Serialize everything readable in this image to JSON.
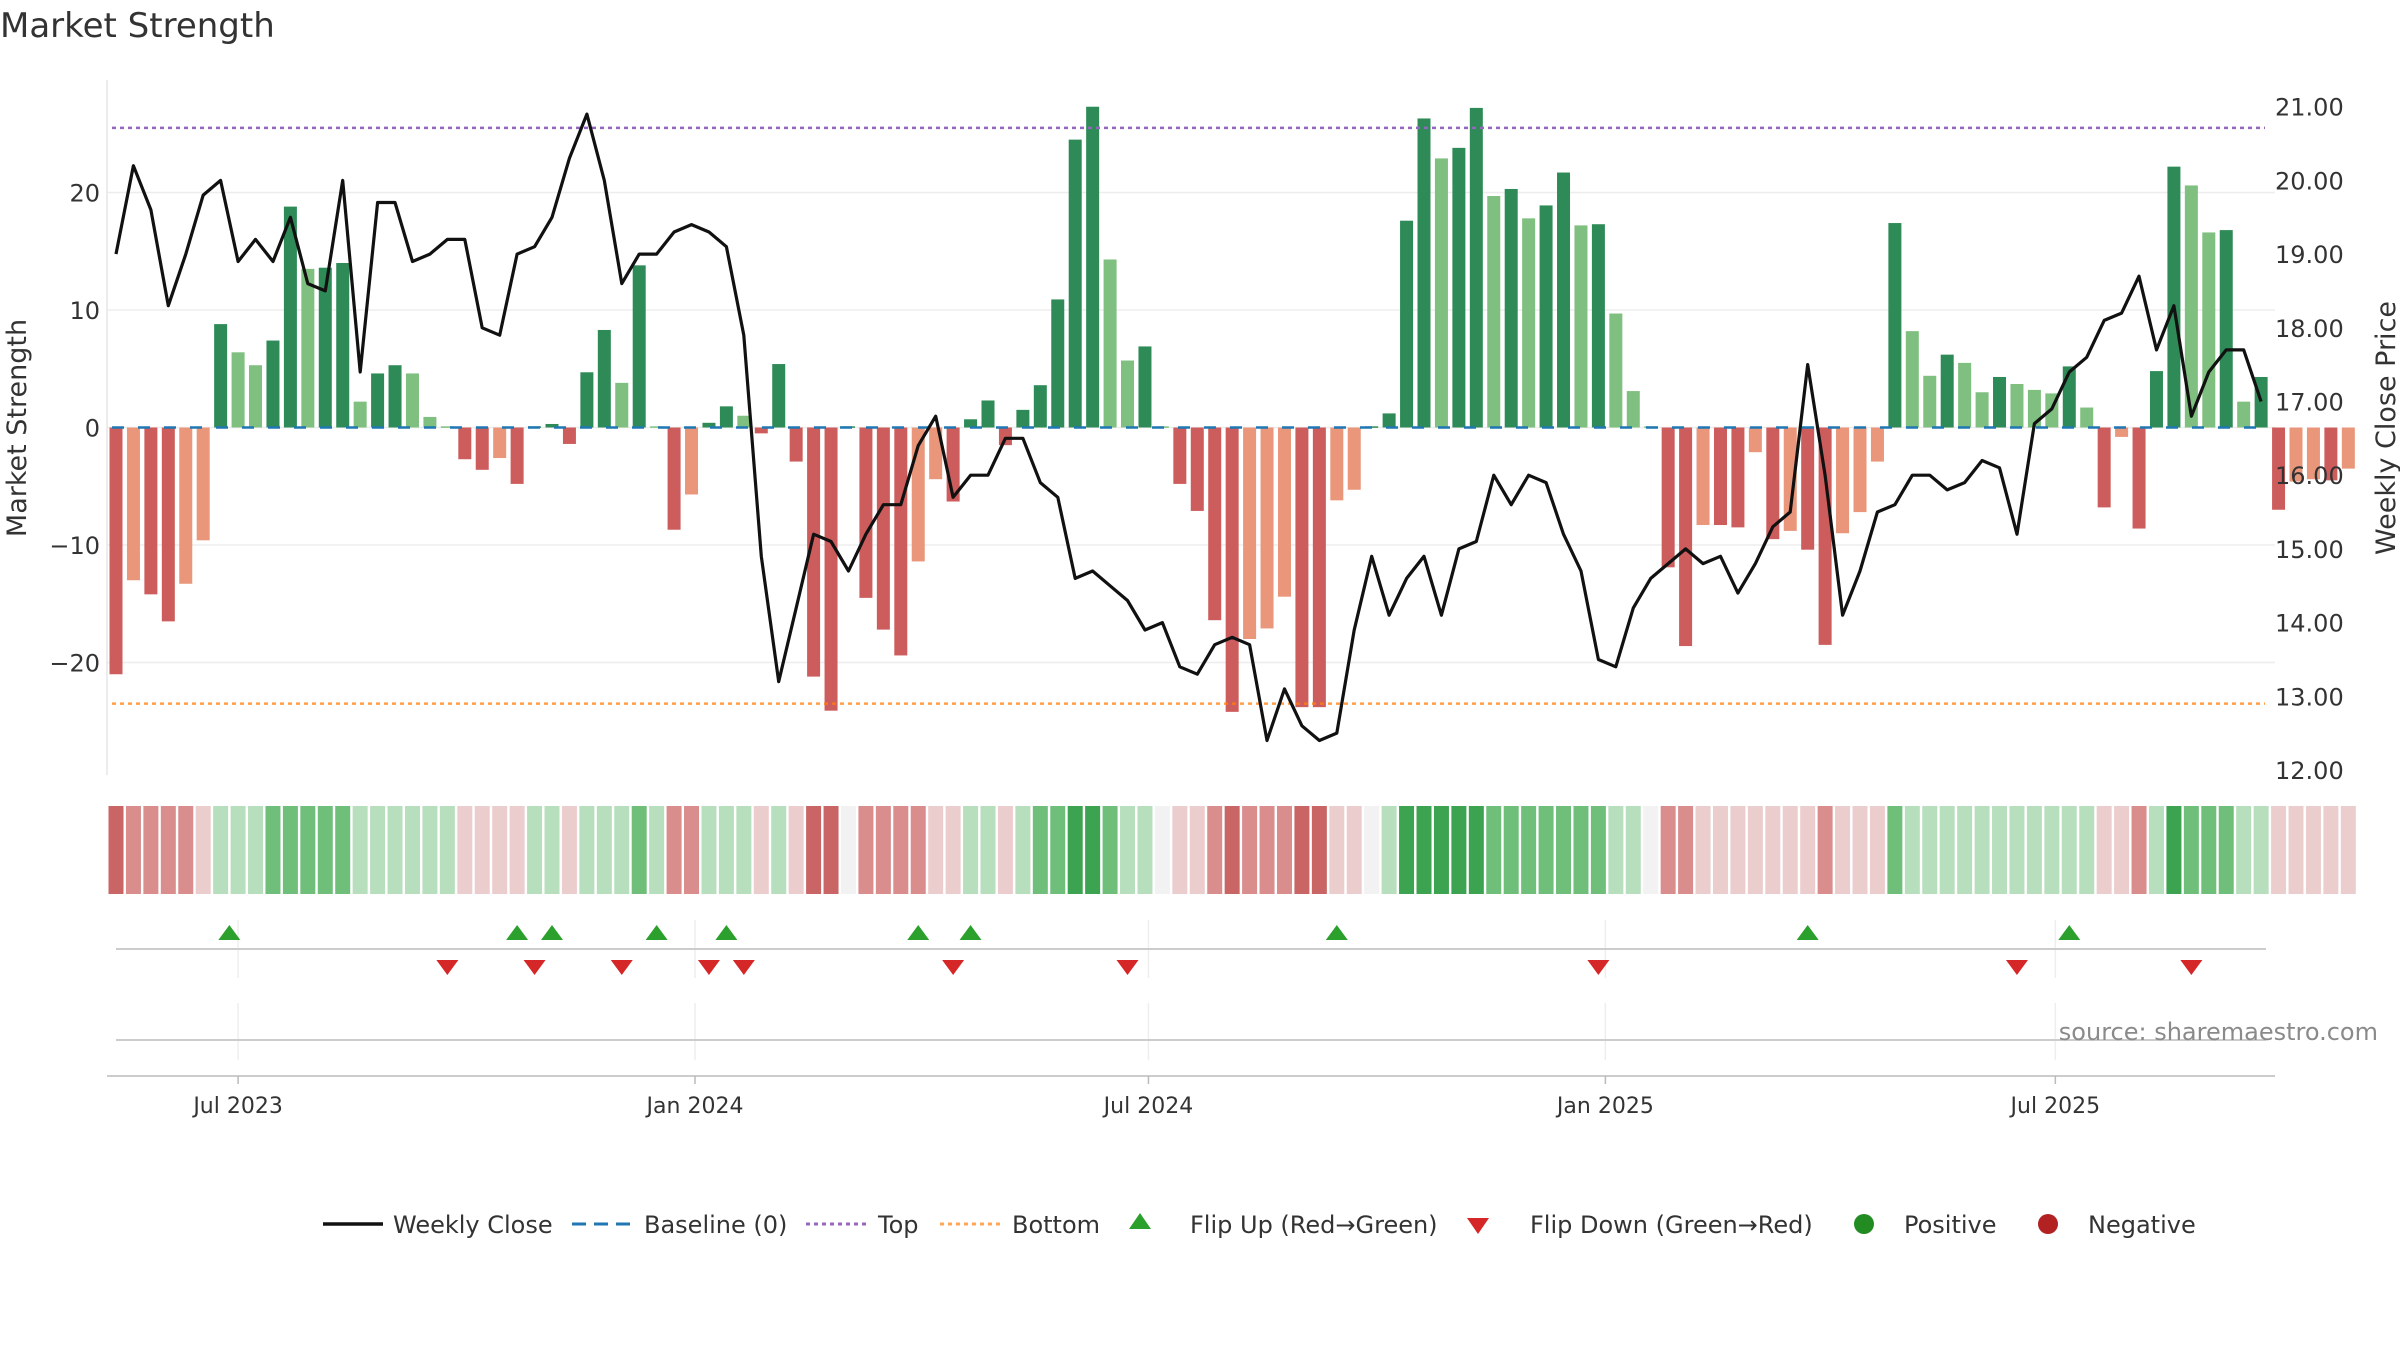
{
  "chart_data": {
    "type": "bar",
    "title": "Market Strength",
    "ylabel_left": "Market Strength",
    "ylabel_right": "Weekly Close Price",
    "source": "source: sharemaestro.com",
    "left_axis": {
      "range": [
        -29,
        30
      ],
      "ticks": [
        20,
        10,
        0,
        -10,
        -20
      ],
      "tick_labels": [
        "20",
        "10",
        "0",
        "−10",
        "−20"
      ]
    },
    "right_axis": {
      "range": [
        12.0,
        21.3
      ],
      "ticks": [
        21,
        20,
        19,
        18,
        17,
        16,
        15,
        14,
        13,
        12
      ],
      "tick_labels": [
        "21.00",
        "20.00",
        "19.00",
        "18.00",
        "17.00",
        "16.00",
        "15.00",
        "14.00",
        "13.00",
        "12.00"
      ]
    },
    "x_ticks": [
      {
        "label": "Jul 2023",
        "week": 7
      },
      {
        "label": "Jan 2024",
        "week": 33.2
      },
      {
        "label": "Jul 2024",
        "week": 59.2
      },
      {
        "label": "Jan 2025",
        "week": 85.4
      },
      {
        "label": "Jul 2025",
        "week": 111.2
      }
    ],
    "top_level": 25.5,
    "bottom_level": -23.5,
    "strength_values": [
      -21,
      -13,
      -14.2,
      -16.5,
      -13.3,
      -9.6,
      8.8,
      6.4,
      5.3,
      7.4,
      18.8,
      13.5,
      13.6,
      14,
      2.2,
      4.6,
      5.3,
      4.6,
      0.9,
      0.1,
      -2.7,
      -3.6,
      -2.6,
      -4.8,
      0.1,
      0.3,
      -1.4,
      4.7,
      8.3,
      3.8,
      13.8,
      0.1,
      -8.7,
      -5.7,
      0.4,
      1.8,
      1.0,
      -0.5,
      5.4,
      -2.9,
      -21.2,
      -24.1,
      0.1,
      -14.5,
      -17.2,
      -19.4,
      -11.4,
      -4.4,
      -6.3,
      0.7,
      2.3,
      -1.5,
      1.5,
      3.6,
      10.9,
      24.5,
      27.3,
      14.3,
      5.7,
      6.9,
      0.1,
      -4.8,
      -7.1,
      -16.4,
      -24.2,
      -18,
      -17.1,
      -14.4,
      -23.8,
      -23.8,
      -6.2,
      -5.3,
      0.1,
      1.2,
      17.6,
      26.3,
      22.9,
      23.8,
      27.2,
      19.7,
      20.3,
      17.8,
      18.9,
      21.7,
      17.2,
      17.3,
      9.7,
      3.1,
      0.1,
      -11.9,
      -18.6,
      -8.3,
      -8.3,
      -8.5,
      -2.1,
      -9.5,
      -8.8,
      -10.4,
      -18.5,
      -9,
      -7.2,
      -2.9,
      17.4,
      8.2,
      4.4,
      6.2,
      5.5,
      3,
      4.3,
      3.7,
      3.2,
      2.9,
      5.2,
      1.7,
      -6.8,
      -0.8,
      -8.6,
      4.8,
      22.2,
      20.6,
      16.6,
      16.8,
      2.2,
      4.3,
      -7,
      -4.6,
      -4.4,
      -4.5,
      -3.5
    ],
    "close_values": [
      19.0,
      20.2,
      19.6,
      18.3,
      19.0,
      19.8,
      20.0,
      18.9,
      19.2,
      18.9,
      19.5,
      18.6,
      18.5,
      20.0,
      17.4,
      19.7,
      19.7,
      18.9,
      19.0,
      19.2,
      19.2,
      18.0,
      17.9,
      19.0,
      19.1,
      19.5,
      20.3,
      20.9,
      20.0,
      18.6,
      19.0,
      19.0,
      19.3,
      19.4,
      19.3,
      19.1,
      17.9,
      14.9,
      13.2,
      14.2,
      15.2,
      15.1,
      14.7,
      15.2,
      15.6,
      15.6,
      16.4,
      16.8,
      15.7,
      16.0,
      16.0,
      16.5,
      16.5,
      15.9,
      15.7,
      14.6,
      14.7,
      14.5,
      14.3,
      13.9,
      14.0,
      13.4,
      13.3,
      13.7,
      13.8,
      13.7,
      12.4,
      13.1,
      12.6,
      12.4,
      12.5,
      13.9,
      14.9,
      14.1,
      14.6,
      14.9,
      14.1,
      15.0,
      15.1,
      16.0,
      15.6,
      16.0,
      15.9,
      15.2,
      14.7,
      13.5,
      13.4,
      14.2,
      14.6,
      14.8,
      15.0,
      14.8,
      14.9,
      14.4,
      14.8,
      15.3,
      15.5,
      17.5,
      16.0,
      14.1,
      14.7,
      15.5,
      15.6,
      16.0,
      16.0,
      15.8,
      15.9,
      16.2,
      16.1,
      15.2,
      16.7,
      16.9,
      17.4,
      17.6,
      18.1,
      18.2,
      18.7,
      17.7,
      18.3,
      16.8,
      17.4,
      17.7,
      17.7,
      17.0
    ],
    "regime_band": [
      -3,
      -2,
      -2,
      -2,
      -2,
      -1,
      1,
      1,
      1,
      2,
      2,
      2,
      2,
      2,
      1,
      1,
      1,
      1,
      1,
      1,
      -1,
      -1,
      -1,
      -1,
      1,
      1,
      -1,
      1,
      1,
      1,
      2,
      1,
      -2,
      -2,
      1,
      1,
      1,
      -1,
      1,
      -1,
      -3,
      -3,
      0,
      -2,
      -2,
      -2,
      -2,
      -1,
      -1,
      1,
      1,
      -1,
      1,
      2,
      2,
      3,
      3,
      2,
      1,
      1,
      0,
      -1,
      -1,
      -2,
      -3,
      -2,
      -2,
      -2,
      -3,
      -3,
      -1,
      -1,
      0,
      1,
      3,
      3,
      3,
      3,
      3,
      2,
      2,
      2,
      2,
      2,
      2,
      2,
      1,
      1,
      0,
      -2,
      -2,
      -1,
      -1,
      -1,
      -1,
      -1,
      -1,
      -1,
      -2,
      -1,
      -1,
      -1,
      2,
      1,
      1,
      1,
      1,
      1,
      1,
      1,
      1,
      1,
      1,
      1,
      -1,
      -1,
      -2,
      1,
      3,
      2,
      2,
      2,
      1,
      1,
      -1,
      -1,
      -1,
      -1,
      -1
    ],
    "flip_up_weeks": [
      6.5,
      23,
      25,
      31,
      35,
      46,
      49,
      70,
      97,
      112
    ],
    "flip_down_weeks": [
      19,
      24,
      29,
      34,
      36,
      48,
      58,
      85,
      109,
      119
    ],
    "colors": {
      "strong_green": "#2e8b57",
      "light_green": "#7fbf7f",
      "strong_red": "#cd5c5c",
      "light_red": "#e9967a",
      "close_line": "#111111",
      "baseline": "#1f77b4",
      "top": "#9467bd",
      "bottom": "#ff7f0e",
      "flip_up": "#2ca02c",
      "flip_down": "#d62728",
      "positive": "#228b22",
      "negative": "#b22222"
    },
    "legend": {
      "weekly_close": "Weekly Close",
      "baseline": "Baseline (0)",
      "top": "Top",
      "bottom": "Bottom",
      "flip_up": "Flip Up (Red→Green)",
      "flip_down": "Flip Down (Green→Red)",
      "positive": "Positive",
      "negative": "Negative"
    }
  }
}
